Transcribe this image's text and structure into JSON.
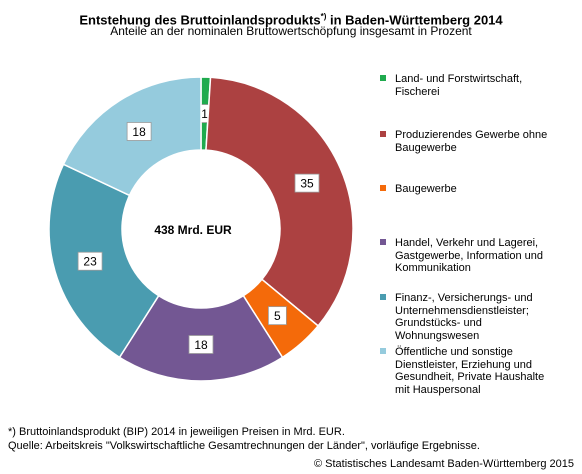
{
  "title": {
    "main": "Entstehung des Bruttoinlandsprodukts",
    "marker": "*)",
    "suffix": " in Baden-Württemberg 2014"
  },
  "subtitle": "Anteile an der nominalen Bruttowertschöpfung insgesamt in Prozent",
  "center_label": "438 Mrd. EUR",
  "chart_data": {
    "type": "pie",
    "variant": "donut",
    "title": "Entstehung des Bruttoinlandsprodukts*) in Baden-Württemberg 2014",
    "subtitle": "Anteile an der nominalen Bruttowertschöpfung insgesamt in Prozent",
    "center_label": "438 Mrd. EUR",
    "legend_position": "right",
    "slices": [
      {
        "label": "Land- und Forstwirtschaft, Fischerei",
        "value": 1,
        "color": "#1faa4e"
      },
      {
        "label": "Produzierendes Gewerbe ohne Baugewerbe",
        "value": 35,
        "color": "#ac4141"
      },
      {
        "label": "Baugewerbe",
        "value": 5,
        "color": "#f46a0a"
      },
      {
        "label": "Handel, Verkehr und Lagerei, Gastgewerbe, Information und Kommunikation",
        "value": 18,
        "color": "#735793"
      },
      {
        "label": "Finanz-, Versicherungs- und Unternehmensdienstleister; Grundstücks- und Wohnungswesen",
        "value": 23,
        "color": "#4a9cb0"
      },
      {
        "label": "Öffentliche und sonstige Dienstleister, Erziehung und Gesundheit, Private Haushalte mit Hauspersonal",
        "value": 18,
        "color": "#95cbdd"
      }
    ]
  },
  "legend_lines": [
    [
      "Land- und Forstwirtschaft,",
      "Fischerei"
    ],
    [
      "Produzierendes Gewerbe ohne",
      "Baugewerbe"
    ],
    [
      "Baugewerbe"
    ],
    [
      "Handel, Verkehr und Lagerei,",
      "Gastgewerbe, Information und",
      "Kommunikation"
    ],
    [
      "Finanz-, Versicherungs- und",
      "Unternehmensdienstleister;",
      "Grundstücks- und",
      "Wohnungswesen"
    ],
    [
      "Öffentliche und sonstige",
      "Dienstleister, Erziehung und",
      "Gesundheit, Private Haushalte",
      "mit Hauspersonal"
    ]
  ],
  "footnote": "*) Bruttoinlandsprodukt (BIP) 2014 in jeweiligen Preisen in Mrd. EUR.",
  "source": "Quelle: Arbeitskreis \"Volkswirtschaftliche Gesamtrechnungen der Länder\", vorläufige Ergebnisse.",
  "copyright": "© Statistisches Landesamt Baden-Württemberg 2015"
}
